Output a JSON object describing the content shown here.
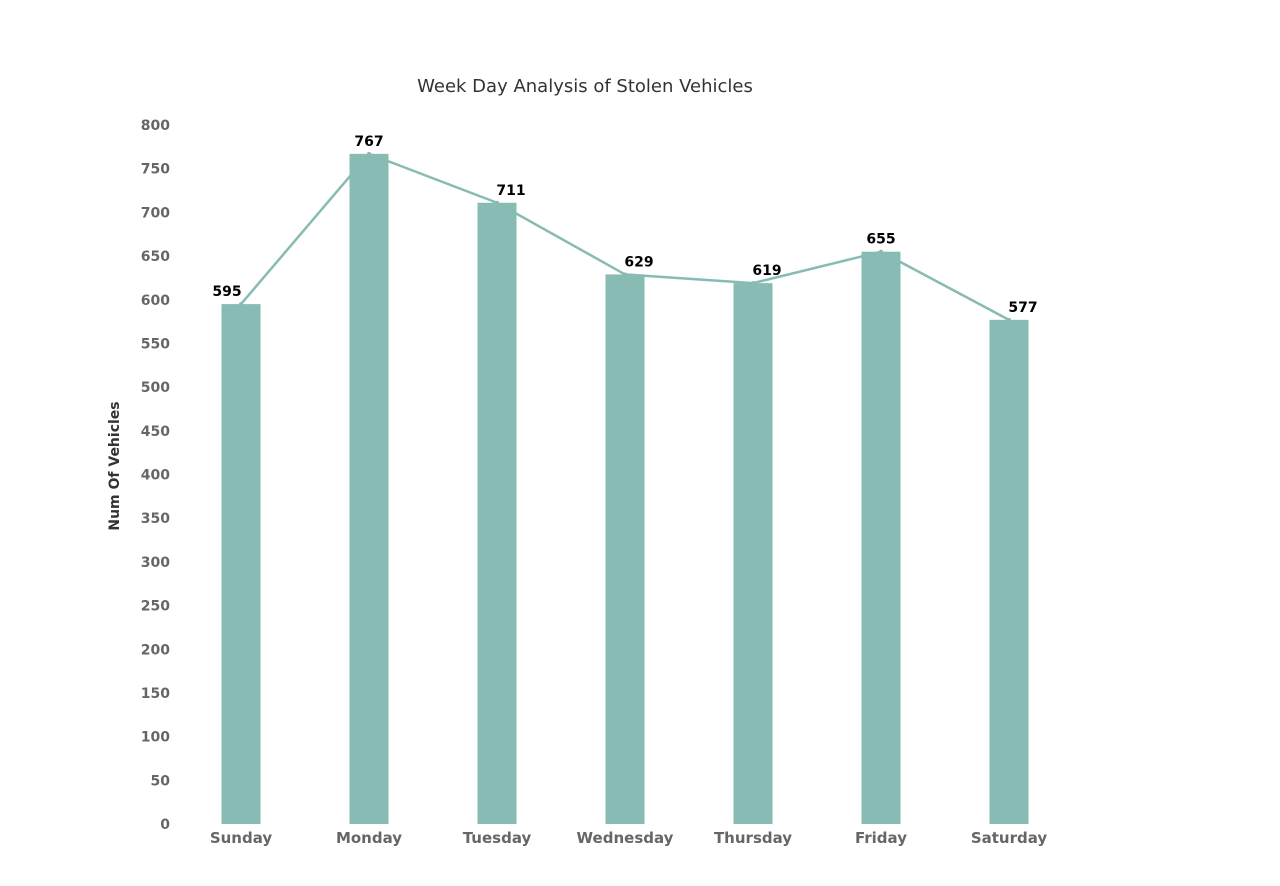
{
  "chart_data": {
    "type": "bar",
    "title": "Week Day Analysis of Stolen Vehicles",
    "xlabel": "",
    "ylabel": "Num Of Vehicles",
    "categories": [
      "Sunday",
      "Monday",
      "Tuesday",
      "Wednesday",
      "Thursday",
      "Friday",
      "Saturday"
    ],
    "values": [
      595,
      767,
      711,
      629,
      619,
      655,
      577
    ],
    "overlay": "line",
    "ylim": [
      0,
      800
    ],
    "yticks": [
      0,
      50,
      100,
      150,
      200,
      250,
      300,
      350,
      400,
      450,
      500,
      550,
      600,
      650,
      700,
      750,
      800
    ],
    "data_labels": true,
    "grid": false,
    "legend": "none"
  },
  "colors": {
    "bar": "#87bbb4",
    "line": "#87bbb4",
    "tick_label": "#666666",
    "data_label": "#000000",
    "title": "#333333"
  }
}
